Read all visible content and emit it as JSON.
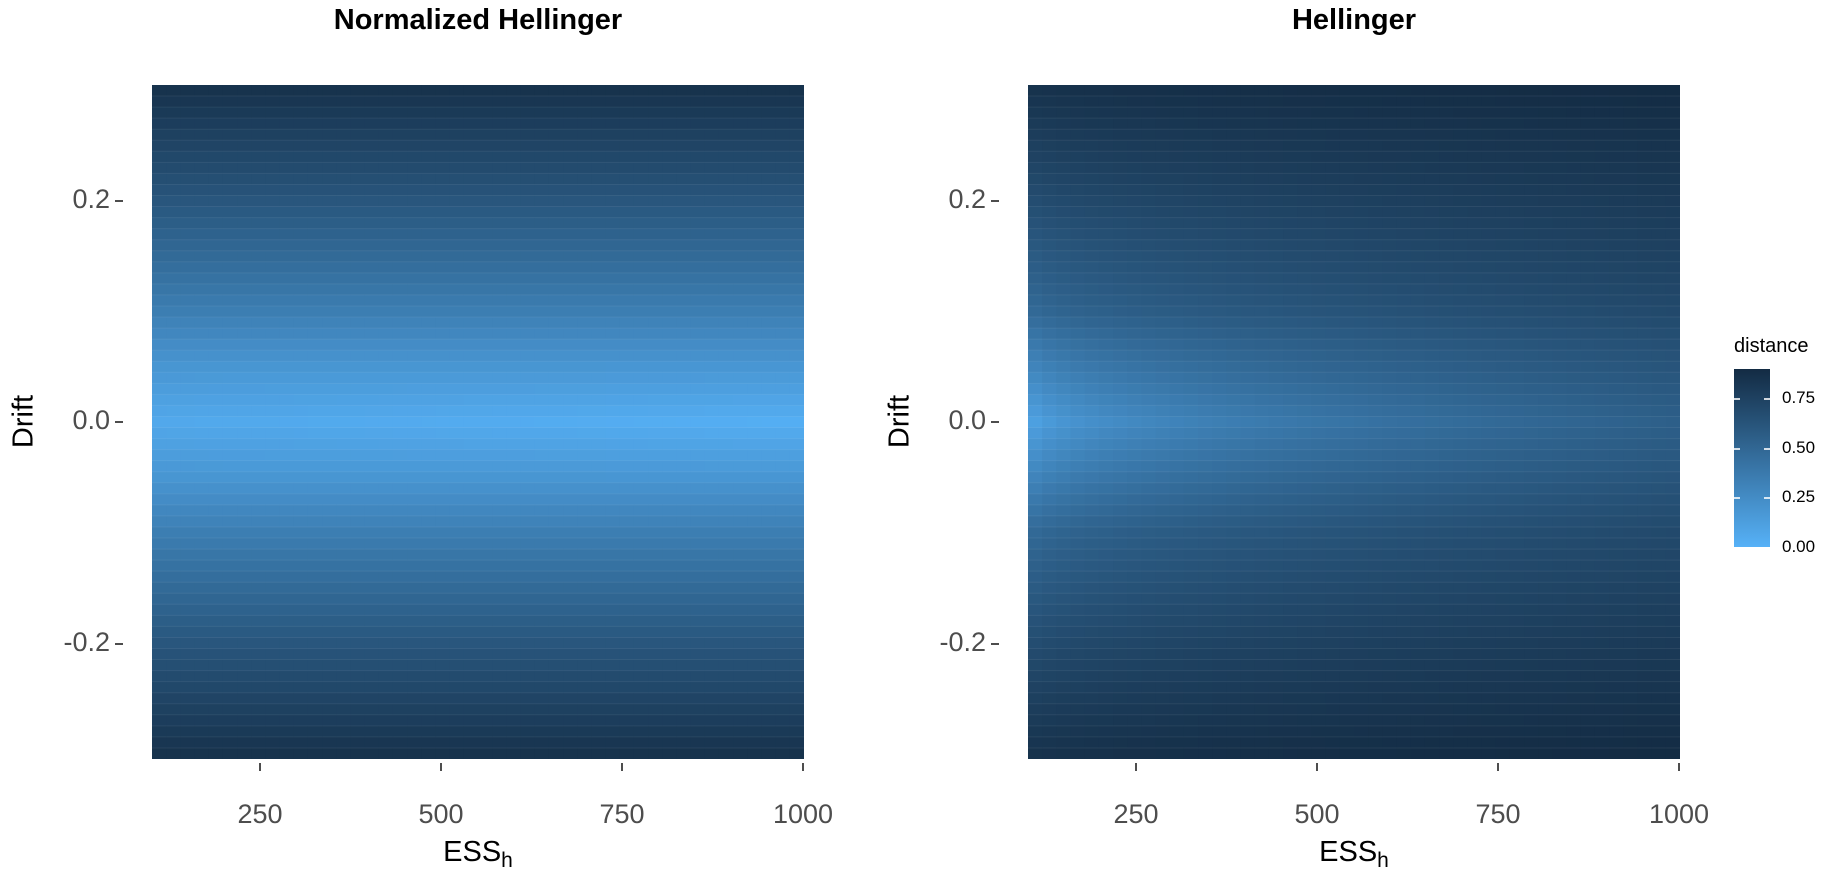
{
  "chart_data": [
    {
      "type": "heatmap",
      "title": "Normalized Hellinger",
      "xlabel": "ESS",
      "xlabel_sub": "h",
      "ylabel": "Drift",
      "x_ticks": [
        250,
        500,
        750,
        1000
      ],
      "y_ticks": [
        "0.2",
        "0.0",
        "-0.2"
      ],
      "xlim": [
        100,
        1000
      ],
      "ylim": [
        -0.3,
        0.3
      ],
      "rows": 61,
      "columns": 46,
      "values_by_drift": {
        "drift": [
          -0.3,
          -0.2,
          -0.1,
          0.0,
          0.1,
          0.2,
          0.3
        ],
        "distance": [
          0.86,
          0.62,
          0.35,
          0.02,
          0.35,
          0.62,
          0.86
        ]
      },
      "legend_mapping": "distance"
    },
    {
      "type": "heatmap",
      "title": "Hellinger",
      "xlabel": "ESS",
      "xlabel_sub": "h",
      "ylabel": "Drift",
      "x_ticks": [
        250,
        500,
        750,
        1000
      ],
      "y_ticks": [
        "0.2",
        "0.0",
        "-0.2"
      ],
      "xlim": [
        100,
        1000
      ],
      "ylim": [
        -0.3,
        0.3
      ],
      "rows": 61,
      "columns": 46,
      "values_by_drift": {
        "drift": [
          -0.3,
          -0.2,
          -0.1,
          0.0,
          0.1,
          0.2,
          0.3
        ],
        "distance_at_ess_100": [
          0.85,
          0.66,
          0.46,
          0.05,
          0.46,
          0.66,
          0.85
        ],
        "distance_at_ess_1000": [
          0.9,
          0.8,
          0.7,
          0.55,
          0.7,
          0.8,
          0.9
        ]
      },
      "legend_mapping": "distance"
    }
  ],
  "legend": {
    "title": "distance",
    "labels": [
      "0.75",
      "0.50",
      "0.25",
      "0.00"
    ],
    "label_values": [
      0.75,
      0.5,
      0.25,
      0.0
    ],
    "range": [
      0,
      0.9
    ],
    "color_low": "#56B1F7",
    "color_high": "#132B43"
  }
}
